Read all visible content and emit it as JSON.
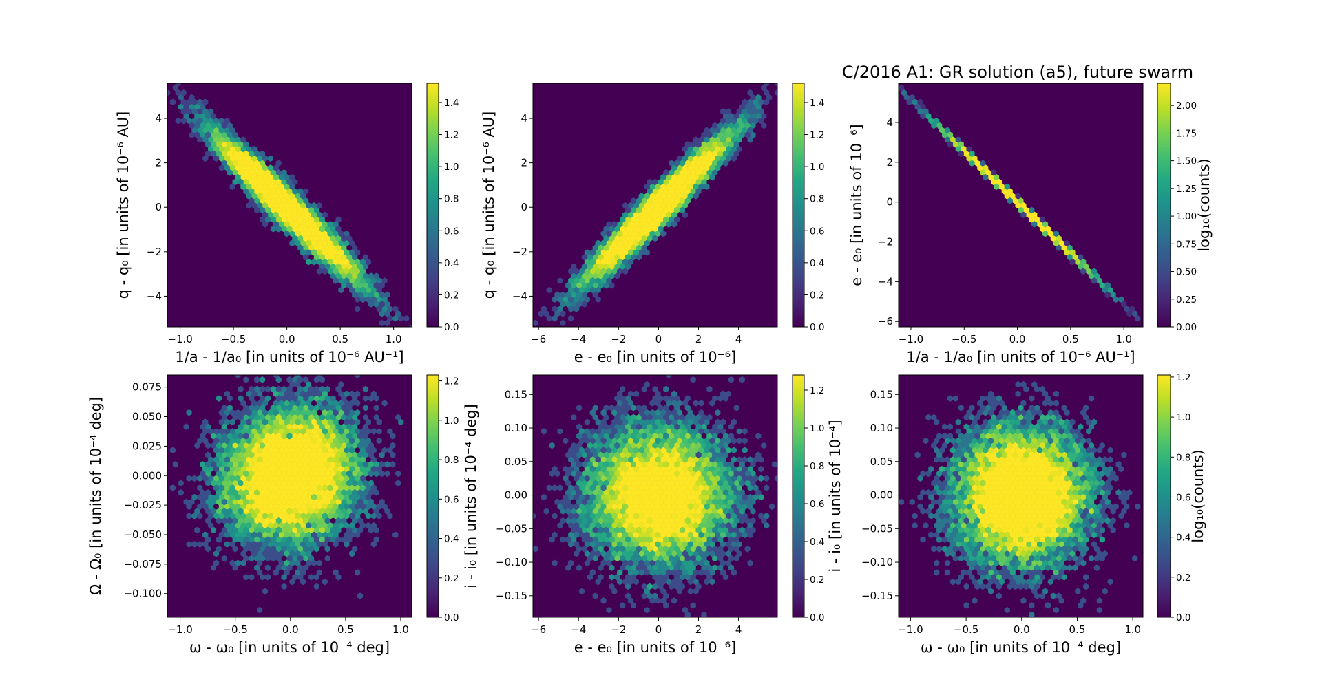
{
  "figure": {
    "title": "C/2016 A1: GR solution (a5), future swarm",
    "colormap": "viridis",
    "background_color": "#440154"
  },
  "chart_data": [
    {
      "type": "heatmap",
      "subtype": "hexbin",
      "xlabel": "1/a - 1/a₀ [in units of 10⁻⁶ AU⁻¹]",
      "ylabel": "q - q₀ [in units of 10⁻⁶ AU]",
      "xlim": [
        -1.12,
        1.17
      ],
      "ylim": [
        -5.38,
        5.58
      ],
      "xticks": [
        -1.0,
        -0.5,
        0.0,
        0.5,
        1.0
      ],
      "xtick_labels": [
        "−1.0",
        "−0.5",
        "0.0",
        "0.5",
        "1.0"
      ],
      "yticks": [
        -4,
        -2,
        0,
        2,
        4
      ],
      "ytick_labels": [
        "−4",
        "−2",
        "0",
        "2",
        "4"
      ],
      "colorbar": {
        "label": "",
        "clim": [
          0,
          1.52
        ],
        "ticks": [
          0,
          0.2,
          0.4,
          0.6,
          0.8,
          1.0,
          1.2,
          1.4
        ],
        "tick_labels": [
          "0.0",
          "0.2",
          "0.4",
          "0.6",
          "0.8",
          "1.0",
          "1.2",
          "1.4"
        ]
      },
      "distribution": {
        "x_mean": 0,
        "y_mean": 0,
        "x_std": 0.33,
        "y_std": 1.6,
        "correlation": -0.96
      }
    },
    {
      "type": "heatmap",
      "subtype": "hexbin",
      "xlabel": "e - e₀ [in units of 10⁻⁶]",
      "ylabel": "q - q₀ [in units of 10⁻⁶ AU]",
      "xlim": [
        -6.28,
        5.94
      ],
      "ylim": [
        -5.38,
        5.58
      ],
      "xticks": [
        -6,
        -4,
        -2,
        0,
        2,
        4
      ],
      "xtick_labels": [
        "−6",
        "−4",
        "−2",
        "0",
        "2",
        "4"
      ],
      "yticks": [
        -4,
        -2,
        0,
        2,
        4
      ],
      "ytick_labels": [
        "−4",
        "−2",
        "0",
        "2",
        "4"
      ],
      "colorbar": {
        "label": "",
        "clim": [
          0,
          1.52
        ],
        "ticks": [
          0,
          0.2,
          0.4,
          0.6,
          0.8,
          1.0,
          1.2,
          1.4
        ],
        "tick_labels": [
          "0.0",
          "0.2",
          "0.4",
          "0.6",
          "0.8",
          "1.0",
          "1.2",
          "1.4"
        ]
      },
      "distribution": {
        "x_mean": 0,
        "y_mean": 0,
        "x_std": 1.75,
        "y_std": 1.6,
        "correlation": 0.96
      }
    },
    {
      "type": "heatmap",
      "subtype": "hexbin",
      "xlabel": "1/a - 1/a₀ [in units of 10⁻⁶ AU⁻¹]",
      "ylabel": "e - e₀ [in units of 10⁻⁶]",
      "xlim": [
        -1.116,
        1.18
      ],
      "ylim": [
        -6.27,
        5.97
      ],
      "xticks": [
        -1.0,
        -0.5,
        0.0,
        0.5,
        1.0
      ],
      "xtick_labels": [
        "−1.0",
        "−0.5",
        "0.0",
        "0.5",
        "1.0"
      ],
      "yticks": [
        -6,
        -4,
        -2,
        0,
        2,
        4
      ],
      "ytick_labels": [
        "−6",
        "−4",
        "−2",
        "0",
        "2",
        "4"
      ],
      "colorbar": {
        "label": "log₁₀(counts)",
        "clim": [
          0,
          2.2
        ],
        "ticks": [
          0,
          0.25,
          0.5,
          0.75,
          1.0,
          1.25,
          1.5,
          1.75,
          2.0
        ],
        "tick_labels": [
          "0.00",
          "0.25",
          "0.50",
          "0.75",
          "1.00",
          "1.25",
          "1.50",
          "1.75",
          "2.00"
        ]
      },
      "distribution": {
        "x_mean": 0,
        "y_mean": 0,
        "x_std": 0.33,
        "y_std": 1.7,
        "correlation": -0.9995
      }
    },
    {
      "type": "heatmap",
      "subtype": "hexbin",
      "xlabel": "ω - ω₀ [in units of 10⁻⁴ deg]",
      "ylabel": "Ω - Ω₀ [in units of 10⁻⁴ deg]",
      "xlim": [
        -1.116,
        1.1
      ],
      "ylim": [
        -0.12,
        0.0853
      ],
      "xticks": [
        -1.0,
        -0.5,
        0.0,
        0.5,
        1.0
      ],
      "xtick_labels": [
        "−1.0",
        "−0.5",
        "0.0",
        "0.5",
        "1.0"
      ],
      "yticks": [
        -0.1,
        -0.075,
        -0.05,
        -0.025,
        0.0,
        0.025,
        0.05,
        0.075
      ],
      "ytick_labels": [
        "−0.100",
        "−0.075",
        "−0.050",
        "−0.025",
        "0.000",
        "0.025",
        "0.050",
        "0.075"
      ],
      "colorbar": {
        "label": "",
        "clim": [
          0,
          1.23
        ],
        "ticks": [
          0,
          0.2,
          0.4,
          0.6,
          0.8,
          1.0,
          1.2
        ],
        "tick_labels": [
          "0.0",
          "0.2",
          "0.4",
          "0.6",
          "0.8",
          "1.0",
          "1.2"
        ]
      },
      "distribution": {
        "x_mean": 0,
        "y_mean": 0,
        "x_std": 0.3,
        "y_std": 0.028,
        "correlation": 0.1
      }
    },
    {
      "type": "heatmap",
      "subtype": "hexbin",
      "xlabel": "e - e₀ [in units of 10⁻⁶]",
      "ylabel": "i - i₀ [in units of 10⁻⁴ deg]",
      "xlim": [
        -6.28,
        5.94
      ],
      "ylim": [
        -0.182,
        0.179
      ],
      "xticks": [
        -6,
        -4,
        -2,
        0,
        2,
        4
      ],
      "xtick_labels": [
        "−6",
        "−4",
        "−2",
        "0",
        "2",
        "4"
      ],
      "yticks": [
        -0.15,
        -0.1,
        -0.05,
        0.0,
        0.05,
        0.1,
        0.15
      ],
      "ytick_labels": [
        "−0.15",
        "−0.10",
        "−0.05",
        "0.00",
        "0.05",
        "0.10",
        "0.15"
      ],
      "colorbar": {
        "label": "",
        "clim": [
          0,
          1.28
        ],
        "ticks": [
          0,
          0.2,
          0.4,
          0.6,
          0.8,
          1.0,
          1.2
        ],
        "tick_labels": [
          "0.0",
          "0.2",
          "0.4",
          "0.6",
          "0.8",
          "1.0",
          "1.2"
        ]
      },
      "distribution": {
        "x_mean": 0,
        "y_mean": 0,
        "x_std": 1.75,
        "y_std": 0.05,
        "correlation": 0.0
      }
    },
    {
      "type": "heatmap",
      "subtype": "hexbin",
      "xlabel": "ω - ω₀ [in units of 10⁻⁴ deg]",
      "ylabel": "i - i₀ [in units of 10⁻⁴]",
      "xlim": [
        -1.108,
        1.092
      ],
      "ylim": [
        -0.182,
        0.179
      ],
      "xticks": [
        -1.0,
        -0.5,
        0.0,
        0.5,
        1.0
      ],
      "xtick_labels": [
        "−1.0",
        "−0.5",
        "0.0",
        "0.5",
        "1.0"
      ],
      "yticks": [
        -0.15,
        -0.1,
        -0.05,
        0.0,
        0.05,
        0.1,
        0.15
      ],
      "ytick_labels": [
        "−0.15",
        "−0.10",
        "−0.05",
        "0.00",
        "0.05",
        "0.10",
        "0.15"
      ],
      "colorbar": {
        "label": "log₁₀(counts)",
        "clim": [
          0,
          1.21
        ],
        "ticks": [
          0,
          0.2,
          0.4,
          0.6,
          0.8,
          1.0,
          1.2
        ],
        "tick_labels": [
          "0.0",
          "0.2",
          "0.4",
          "0.6",
          "0.8",
          "1.0",
          "1.2"
        ]
      },
      "distribution": {
        "x_mean": 0,
        "y_mean": 0,
        "x_std": 0.3,
        "y_std": 0.05,
        "correlation": 0.0
      }
    }
  ]
}
